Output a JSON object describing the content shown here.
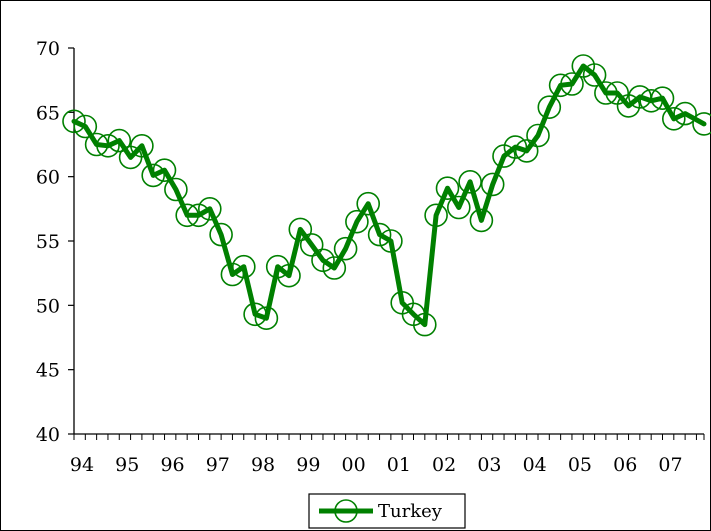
{
  "chart_data": {
    "type": "line",
    "title": "",
    "xlabel": "",
    "ylabel": "",
    "ylim": [
      40,
      70
    ],
    "yticks": [
      40,
      45,
      50,
      55,
      60,
      65,
      70
    ],
    "xlim": [
      1994.0,
      2007.917
    ],
    "xtick_labels": [
      "94",
      "95",
      "96",
      "97",
      "98",
      "99",
      "00",
      "01",
      "02",
      "03",
      "04",
      "05",
      "06",
      "07"
    ],
    "grid": false,
    "legend_position": "bottom-center",
    "series": [
      {
        "name": "Turkey",
        "color": "#008000",
        "marker": "circle-open",
        "points": [
          [
            1994.0,
            64.3
          ],
          [
            1994.25,
            63.9
          ],
          [
            1994.5,
            62.5
          ],
          [
            1994.75,
            62.4
          ],
          [
            1995.0,
            62.8
          ],
          [
            1995.25,
            61.5
          ],
          [
            1995.5,
            62.4
          ],
          [
            1995.75,
            60.1
          ],
          [
            1996.0,
            60.5
          ],
          [
            1996.25,
            59.0
          ],
          [
            1996.5,
            57.0
          ],
          [
            1996.75,
            57.0
          ],
          [
            1997.0,
            57.5
          ],
          [
            1997.25,
            55.5
          ],
          [
            1997.5,
            52.4
          ],
          [
            1997.75,
            53.0
          ],
          [
            1998.0,
            49.3
          ],
          [
            1998.25,
            49.0
          ],
          [
            1998.5,
            53.0
          ],
          [
            1998.75,
            52.3
          ],
          [
            1999.0,
            55.9
          ],
          [
            1999.25,
            54.7
          ],
          [
            1999.5,
            53.5
          ],
          [
            1999.75,
            52.9
          ],
          [
            2000.0,
            54.4
          ],
          [
            2000.25,
            56.5
          ],
          [
            2000.5,
            57.9
          ],
          [
            2000.75,
            55.5
          ],
          [
            2001.0,
            55.0
          ],
          [
            2001.25,
            50.2
          ],
          [
            2001.5,
            49.3
          ],
          [
            2001.75,
            48.5
          ],
          [
            2002.0,
            57.0
          ],
          [
            2002.25,
            59.1
          ],
          [
            2002.5,
            57.6
          ],
          [
            2002.75,
            59.6
          ],
          [
            2003.0,
            56.6
          ],
          [
            2003.25,
            59.4
          ],
          [
            2003.5,
            61.6
          ],
          [
            2003.75,
            62.3
          ],
          [
            2004.0,
            62.0
          ],
          [
            2004.25,
            63.2
          ],
          [
            2004.5,
            65.4
          ],
          [
            2004.75,
            67.1
          ],
          [
            2005.0,
            67.2
          ],
          [
            2005.25,
            68.6
          ],
          [
            2005.5,
            67.9
          ],
          [
            2005.75,
            66.5
          ],
          [
            2006.0,
            66.5
          ],
          [
            2006.25,
            65.5
          ],
          [
            2006.5,
            66.2
          ],
          [
            2006.75,
            65.9
          ],
          [
            2007.0,
            66.1
          ],
          [
            2007.25,
            64.5
          ],
          [
            2007.5,
            64.9
          ],
          [
            2007.917,
            64.1
          ]
        ]
      }
    ]
  }
}
